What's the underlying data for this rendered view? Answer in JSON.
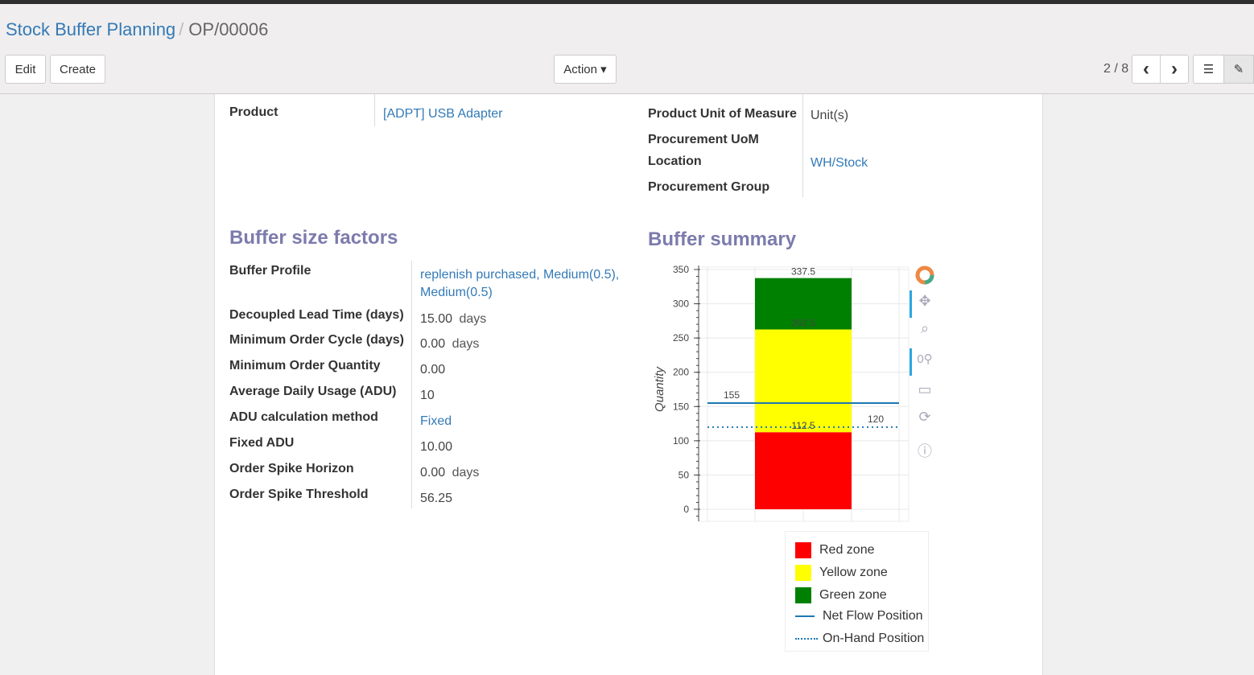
{
  "breadcrumb": {
    "parent": "Stock Buffer Planning",
    "separator": "/",
    "current": "OP/00006"
  },
  "toolbar": {
    "edit": "Edit",
    "create": "Create",
    "action": "Action ▾",
    "pager": "2 / 8",
    "prev": "‹",
    "next": "›"
  },
  "header_fields": {
    "product_label": "Product",
    "product_value": "[ADPT] USB Adapter",
    "uom_label": "Product Unit of Measure",
    "uom_value": "Unit(s)",
    "proc_uom_label": "Procurement UoM",
    "location_label": "Location",
    "location_value": "WH/Stock",
    "group_label": "Procurement Group"
  },
  "factors": {
    "title": "Buffer size factors",
    "rows": [
      {
        "label": "Buffer Profile",
        "value": "replenish purchased, Medium(0.5),",
        "value2": "Medium(0.5)",
        "unit": ""
      },
      {
        "label": "Decoupled Lead Time (days)",
        "value": "15.00",
        "unit": "days"
      },
      {
        "label": "Minimum Order Cycle (days)",
        "value": "0.00",
        "unit": "days"
      },
      {
        "label": "Minimum Order Quantity",
        "value": "0.00",
        "unit": ""
      },
      {
        "label": "Average Daily Usage (ADU)",
        "value": "10",
        "unit": ""
      },
      {
        "label": "ADU calculation method",
        "value": "Fixed",
        "unit": ""
      },
      {
        "label": "Fixed ADU",
        "value": "10.00",
        "unit": ""
      },
      {
        "label": "Order Spike Horizon",
        "value": "0.00",
        "unit": "days"
      },
      {
        "label": "Order Spike Threshold",
        "value": "56.25",
        "unit": ""
      }
    ]
  },
  "summary": {
    "title": "Buffer summary"
  },
  "chart_data": {
    "type": "bar",
    "ylabel": "Quantity",
    "ylim": [
      0,
      350
    ],
    "yticks": [
      0,
      50,
      100,
      150,
      200,
      250,
      300,
      350
    ],
    "grid": true,
    "legend_placement": "bottom",
    "stacked_zones": [
      {
        "name": "Red zone",
        "from": 0,
        "to": 112.5,
        "color": "#ff0000",
        "label": "112.5"
      },
      {
        "name": "Yellow zone",
        "from": 112.5,
        "to": 262.5,
        "color": "#ffff00",
        "label": "262.5"
      },
      {
        "name": "Green zone",
        "from": 262.5,
        "to": 337.5,
        "color": "#008000",
        "label": "337.5"
      }
    ],
    "lines": [
      {
        "name": "Net Flow Position",
        "value": 155,
        "label": "155",
        "style": "solid",
        "color": "#1f77b4"
      },
      {
        "name": "On-Hand Position",
        "value": 120,
        "label": "120",
        "style": "dotted",
        "color": "#1f77b4"
      }
    ]
  }
}
